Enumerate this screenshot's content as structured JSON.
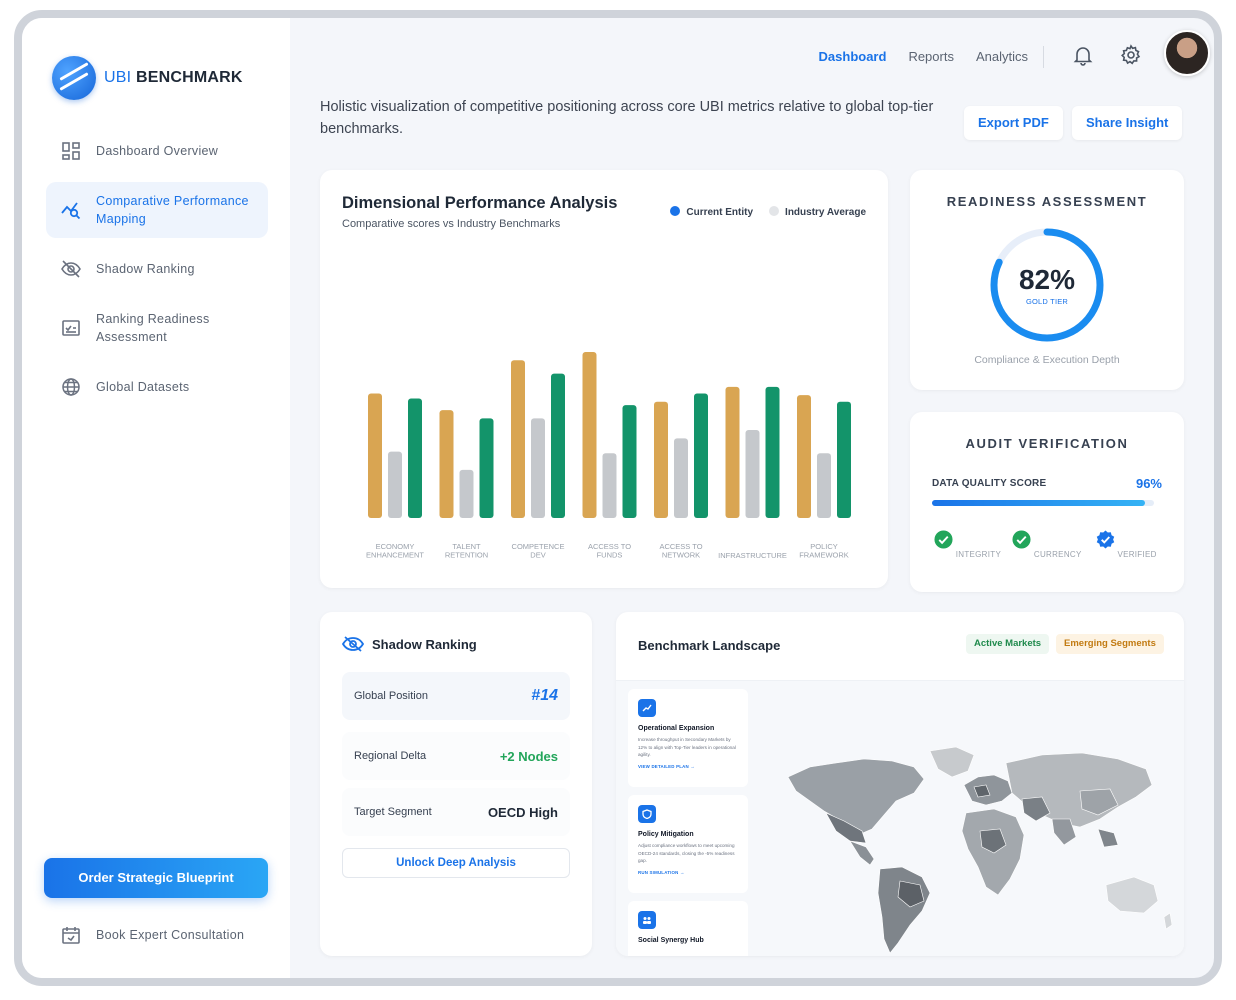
{
  "brand": {
    "prefix": "UBI",
    "suffix": "BENCHMARK"
  },
  "sidebar": {
    "items": [
      {
        "label": "Dashboard Overview",
        "icon": "dashboard-grid-icon"
      },
      {
        "label": "Comparative Performance Mapping",
        "icon": "analytics-chart-icon",
        "active": true
      },
      {
        "label": "Shadow Ranking",
        "icon": "eye-off-icon"
      },
      {
        "label": "Ranking Readiness Assessment",
        "icon": "checklist-icon"
      },
      {
        "label": "Global Datasets",
        "icon": "globe-icon"
      }
    ],
    "cta": "Order Strategic Blueprint",
    "consult": "Book Expert Consultation"
  },
  "topnav": {
    "links": [
      "Dashboard",
      "Reports",
      "Analytics"
    ],
    "active": "Dashboard"
  },
  "header": {
    "subtitle": "Holistic visualization of competitive positioning across core UBI metrics relative to global top-tier benchmarks.",
    "export": "Export PDF",
    "share": "Share Insight"
  },
  "performance": {
    "title": "Dimensional Performance Analysis",
    "subtitle": "Comparative scores vs Industry Benchmarks",
    "legend": [
      "Current Entity",
      "Industry Average"
    ]
  },
  "chart_data": {
    "type": "bar",
    "categories": [
      "ECONOMY ENHANCEMENT",
      "TALENT RETENTION",
      "COMPETENCE DEV",
      "ACCESS TO FUNDS",
      "ACCESS TO NETWORK",
      "INFRASTRUCTURE",
      "POLICY FRAMEWORK"
    ],
    "series": [
      {
        "values": [
          75,
          65,
          95,
          100,
          70,
          79,
          74
        ],
        "color": "#d9a552"
      },
      {
        "name": "Industry Average",
        "values": [
          40,
          29,
          60,
          39,
          48,
          53,
          39
        ],
        "color": "#c5c8cc"
      },
      {
        "name": "Current Entity",
        "values": [
          72,
          60,
          87,
          68,
          75,
          79,
          70
        ],
        "color": "#13946a"
      }
    ],
    "ylim": [
      0,
      100
    ]
  },
  "readiness": {
    "title": "READINESS ASSESSMENT",
    "value": "82%",
    "fraction": 0.82,
    "tier": "GOLD TIER",
    "footer": "Compliance & Execution Depth"
  },
  "audit": {
    "title": "AUDIT VERIFICATION",
    "label": "DATA QUALITY SCORE",
    "value": "96%",
    "fraction": 0.96,
    "checks": [
      "INTEGRITY",
      "CURRENCY",
      "VERIFIED"
    ]
  },
  "shadow": {
    "title": "Shadow Ranking",
    "rows": [
      {
        "label": "Global Position",
        "value": "#14"
      },
      {
        "label": "Regional Delta",
        "value": "+2 Nodes"
      },
      {
        "label": "Target Segment",
        "value": "OECD High"
      }
    ],
    "button": "Unlock Deep Analysis"
  },
  "landscape": {
    "title": "Benchmark Landscape",
    "pills": [
      "Active Markets",
      "Emerging Segments"
    ],
    "tiles": [
      {
        "title": "Operational Expansion",
        "desc": "Increase throughput in Secondary Markets by 12% to align with Top-Tier leaders in operational agility.",
        "link": "VIEW DETAILED PLAN →"
      },
      {
        "title": "Policy Mitigation",
        "desc": "Adjust compliance workflows to meet upcoming OECD-24 standards, closing the -5% readiness gap.",
        "link": "RUN SIMULATION →"
      },
      {
        "title": "Social Synergy Hub",
        "desc": "",
        "link": ""
      }
    ]
  },
  "colors": {
    "accent": "#1a73e8",
    "gold": "#d9a552",
    "green": "#13946a",
    "grey": "#c5c8cc",
    "success": "#22a55a"
  }
}
